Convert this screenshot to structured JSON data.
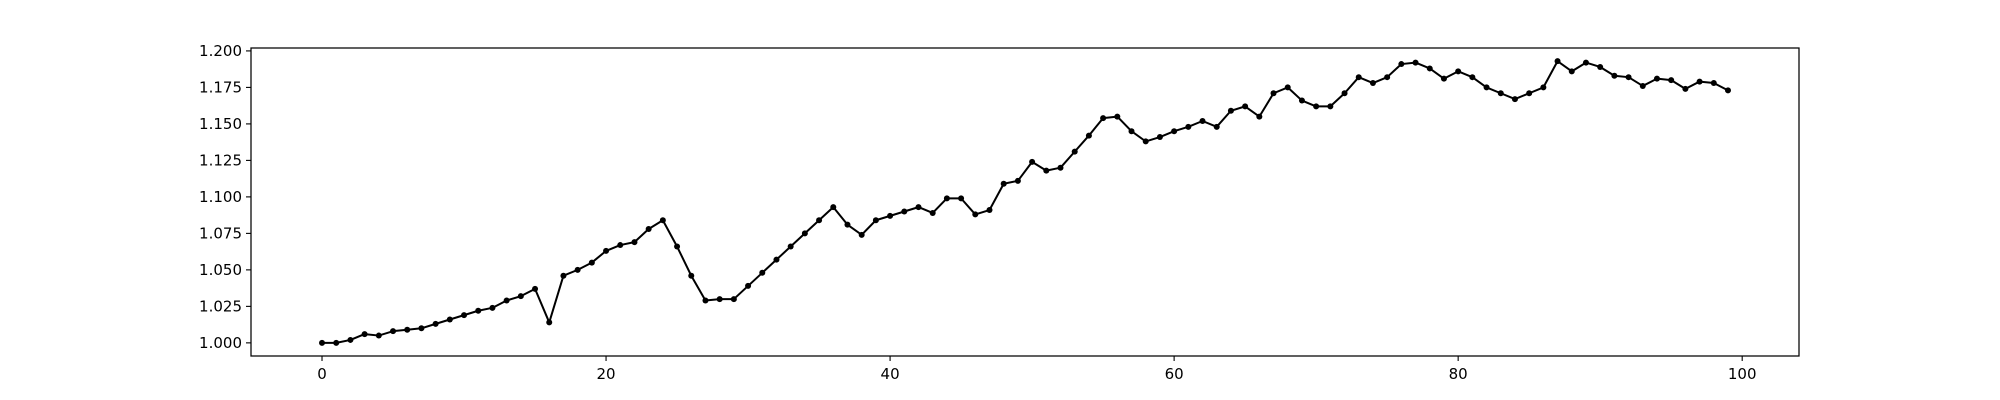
{
  "chart_data": {
    "type": "line",
    "title": "",
    "xlabel": "",
    "ylabel": "",
    "xlim": [
      -5,
      104
    ],
    "ylim": [
      0.991,
      1.202
    ],
    "xticks": [
      0,
      20,
      40,
      60,
      80,
      100
    ],
    "yticks": [
      1.0,
      1.025,
      1.05,
      1.075,
      1.1,
      1.125,
      1.15,
      1.175,
      1.2
    ],
    "ytick_labels": [
      "1.000",
      "1.025",
      "1.050",
      "1.075",
      "1.100",
      "1.125",
      "1.150",
      "1.175",
      "1.200"
    ],
    "xtick_labels": [
      "0",
      "20",
      "40",
      "60",
      "80",
      "100"
    ],
    "grid": false,
    "line_color": "#000000",
    "marker": "circle",
    "series": [
      {
        "x": [
          0,
          1,
          2,
          3,
          4,
          5,
          6,
          7,
          8,
          9,
          10,
          11,
          12,
          13,
          14,
          15,
          16,
          17,
          18,
          19,
          20,
          21,
          22,
          23,
          24,
          25,
          26,
          27,
          28,
          29,
          30,
          31,
          32,
          33,
          34,
          35,
          36,
          37,
          38,
          39,
          40,
          41,
          42,
          43,
          44,
          45,
          46,
          47,
          48,
          49,
          50,
          51,
          52,
          53,
          54,
          55,
          56,
          57,
          58,
          59,
          60,
          61,
          62,
          63,
          64,
          65,
          66,
          67,
          68,
          69,
          70,
          71,
          72,
          73,
          74,
          75,
          76,
          77,
          78,
          79,
          80,
          81,
          82,
          83,
          84,
          85,
          86,
          87,
          88,
          89,
          90,
          91,
          92,
          93,
          94,
          95,
          96,
          97,
          98,
          99
        ],
        "values": [
          1.0,
          1.0,
          1.002,
          1.006,
          1.005,
          1.008,
          1.009,
          1.01,
          1.013,
          1.016,
          1.019,
          1.022,
          1.024,
          1.029,
          1.032,
          1.037,
          1.014,
          1.046,
          1.05,
          1.055,
          1.063,
          1.067,
          1.069,
          1.078,
          1.084,
          1.066,
          1.046,
          1.029,
          1.03,
          1.03,
          1.039,
          1.048,
          1.057,
          1.066,
          1.075,
          1.084,
          1.093,
          1.081,
          1.074,
          1.084,
          1.087,
          1.09,
          1.093,
          1.089,
          1.099,
          1.099,
          1.088,
          1.091,
          1.109,
          1.111,
          1.124,
          1.118,
          1.12,
          1.131,
          1.142,
          1.154,
          1.155,
          1.145,
          1.138,
          1.141,
          1.145,
          1.148,
          1.152,
          1.148,
          1.159,
          1.162,
          1.155,
          1.171,
          1.175,
          1.166,
          1.162,
          1.162,
          1.171,
          1.182,
          1.178,
          1.182,
          1.191,
          1.192,
          1.188,
          1.181,
          1.186,
          1.182,
          1.175,
          1.171,
          1.167,
          1.171,
          1.175,
          1.193,
          1.186,
          1.192,
          1.189,
          1.183,
          1.182,
          1.176,
          1.181,
          1.18,
          1.174,
          1.179,
          1.178,
          1.173
        ]
      }
    ]
  }
}
